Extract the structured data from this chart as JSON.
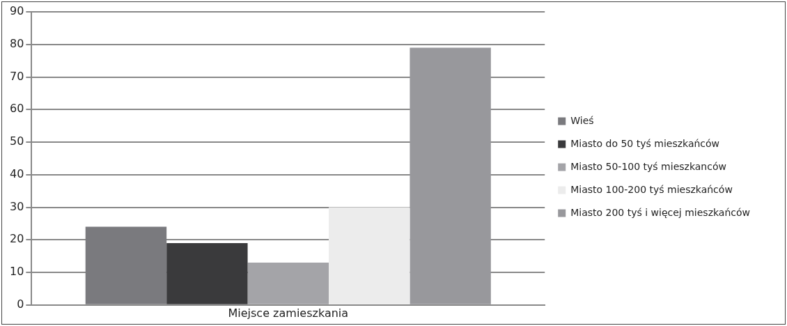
{
  "chart_data": {
    "type": "bar",
    "categories": [
      "Miejsce zamieszkania"
    ],
    "series": [
      {
        "name": "Wieś",
        "color": "#7a7a7e",
        "values": [
          24
        ]
      },
      {
        "name": "Miasto do 50 tyś mieszkańców",
        "color": "#3a3a3c",
        "values": [
          19
        ]
      },
      {
        "name": "Miasto 50-100 tyś mieszkanców",
        "color": "#a4a4a8",
        "values": [
          13
        ]
      },
      {
        "name": "Miasto 100-200 tyś mieszkańców",
        "color": "#ececec",
        "values": [
          30
        ]
      },
      {
        "name": "Miasto 200 tyś i więcej mieszkańców",
        "color": "#98989c",
        "values": [
          79
        ]
      }
    ],
    "ylim": [
      0,
      90
    ],
    "yticks": [
      0,
      10,
      20,
      30,
      40,
      50,
      60,
      70,
      80,
      90
    ],
    "grid": "y",
    "legend": "right"
  }
}
